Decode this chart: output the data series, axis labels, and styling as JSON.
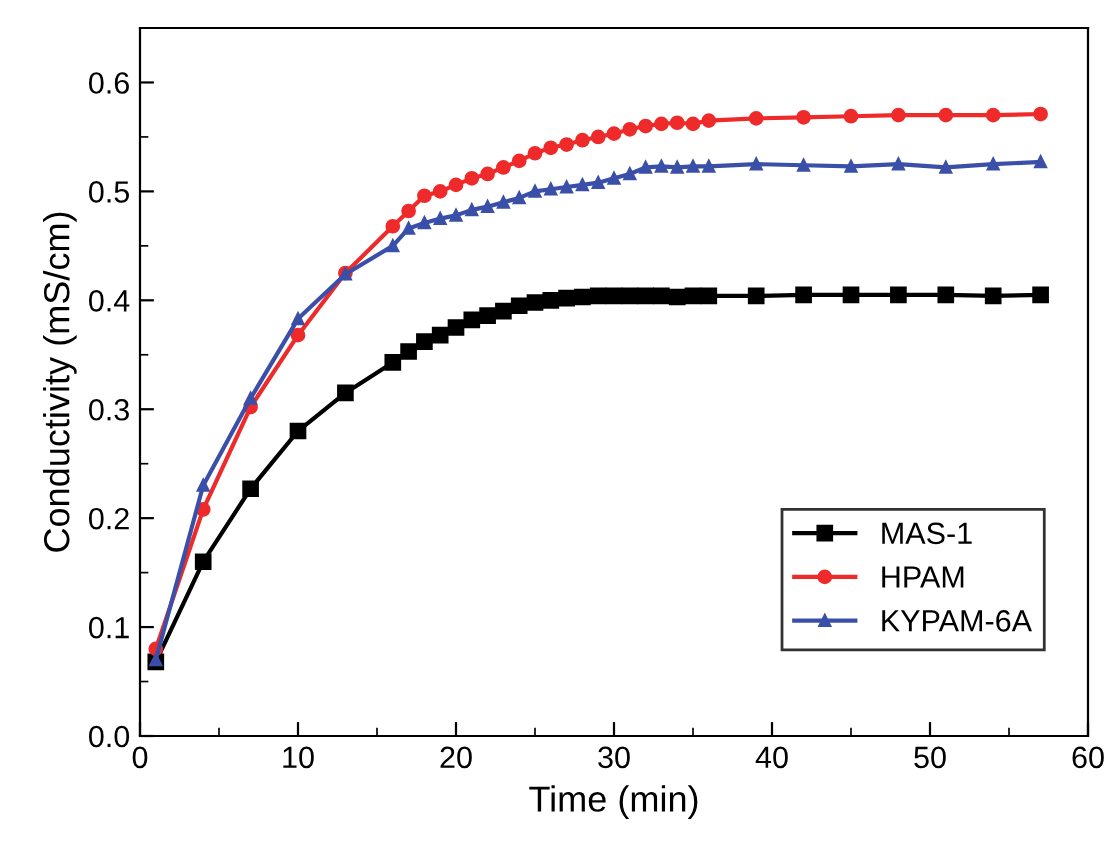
{
  "chart_data": {
    "type": "line",
    "xlabel": "Time (min)",
    "ylabel": "Conductivity (mS/cm)",
    "x": [
      1,
      4,
      7,
      10,
      13,
      16,
      17,
      18,
      19,
      20,
      21,
      22,
      23,
      24,
      25,
      26,
      27,
      28,
      29,
      30,
      31,
      32,
      33,
      34,
      35,
      36,
      39,
      42,
      45,
      48,
      51,
      54,
      57
    ],
    "series": [
      {
        "name": "MAS-1",
        "color": "#000000",
        "marker": "square",
        "values": [
          0.068,
          0.16,
          0.227,
          0.28,
          0.315,
          0.343,
          0.353,
          0.362,
          0.368,
          0.375,
          0.382,
          0.386,
          0.39,
          0.395,
          0.398,
          0.4,
          0.402,
          0.403,
          0.404,
          0.404,
          0.404,
          0.404,
          0.404,
          0.403,
          0.404,
          0.404,
          0.404,
          0.405,
          0.405,
          0.405,
          0.405,
          0.404,
          0.405
        ]
      },
      {
        "name": "HPAM",
        "color": "#ee2a2a",
        "marker": "circle",
        "values": [
          0.08,
          0.208,
          0.302,
          0.368,
          0.425,
          0.468,
          0.482,
          0.496,
          0.5,
          0.506,
          0.512,
          0.516,
          0.522,
          0.528,
          0.535,
          0.54,
          0.543,
          0.547,
          0.55,
          0.553,
          0.557,
          0.56,
          0.562,
          0.563,
          0.562,
          0.565,
          0.567,
          0.568,
          0.569,
          0.57,
          0.57,
          0.57,
          0.571
        ]
      },
      {
        "name": "KYPAM-6A",
        "color": "#3a4fa8",
        "marker": "triangle",
        "values": [
          0.07,
          0.23,
          0.31,
          0.383,
          0.424,
          0.45,
          0.466,
          0.471,
          0.475,
          0.478,
          0.483,
          0.486,
          0.49,
          0.494,
          0.5,
          0.502,
          0.504,
          0.506,
          0.508,
          0.512,
          0.516,
          0.522,
          0.523,
          0.522,
          0.523,
          0.523,
          0.525,
          0.524,
          0.523,
          0.525,
          0.522,
          0.525,
          0.527
        ]
      }
    ],
    "xlim": [
      0,
      60
    ],
    "xticks": [
      0,
      10,
      20,
      30,
      40,
      50,
      60
    ],
    "ylim": [
      0,
      0.65
    ],
    "yticks": [
      {
        "value": 0,
        "label": "0.0"
      },
      0.1,
      0.2,
      0.3,
      0.4,
      0.5,
      0.6
    ],
    "grid": false,
    "legend": "bottom right",
    "line_style": "solid"
  }
}
